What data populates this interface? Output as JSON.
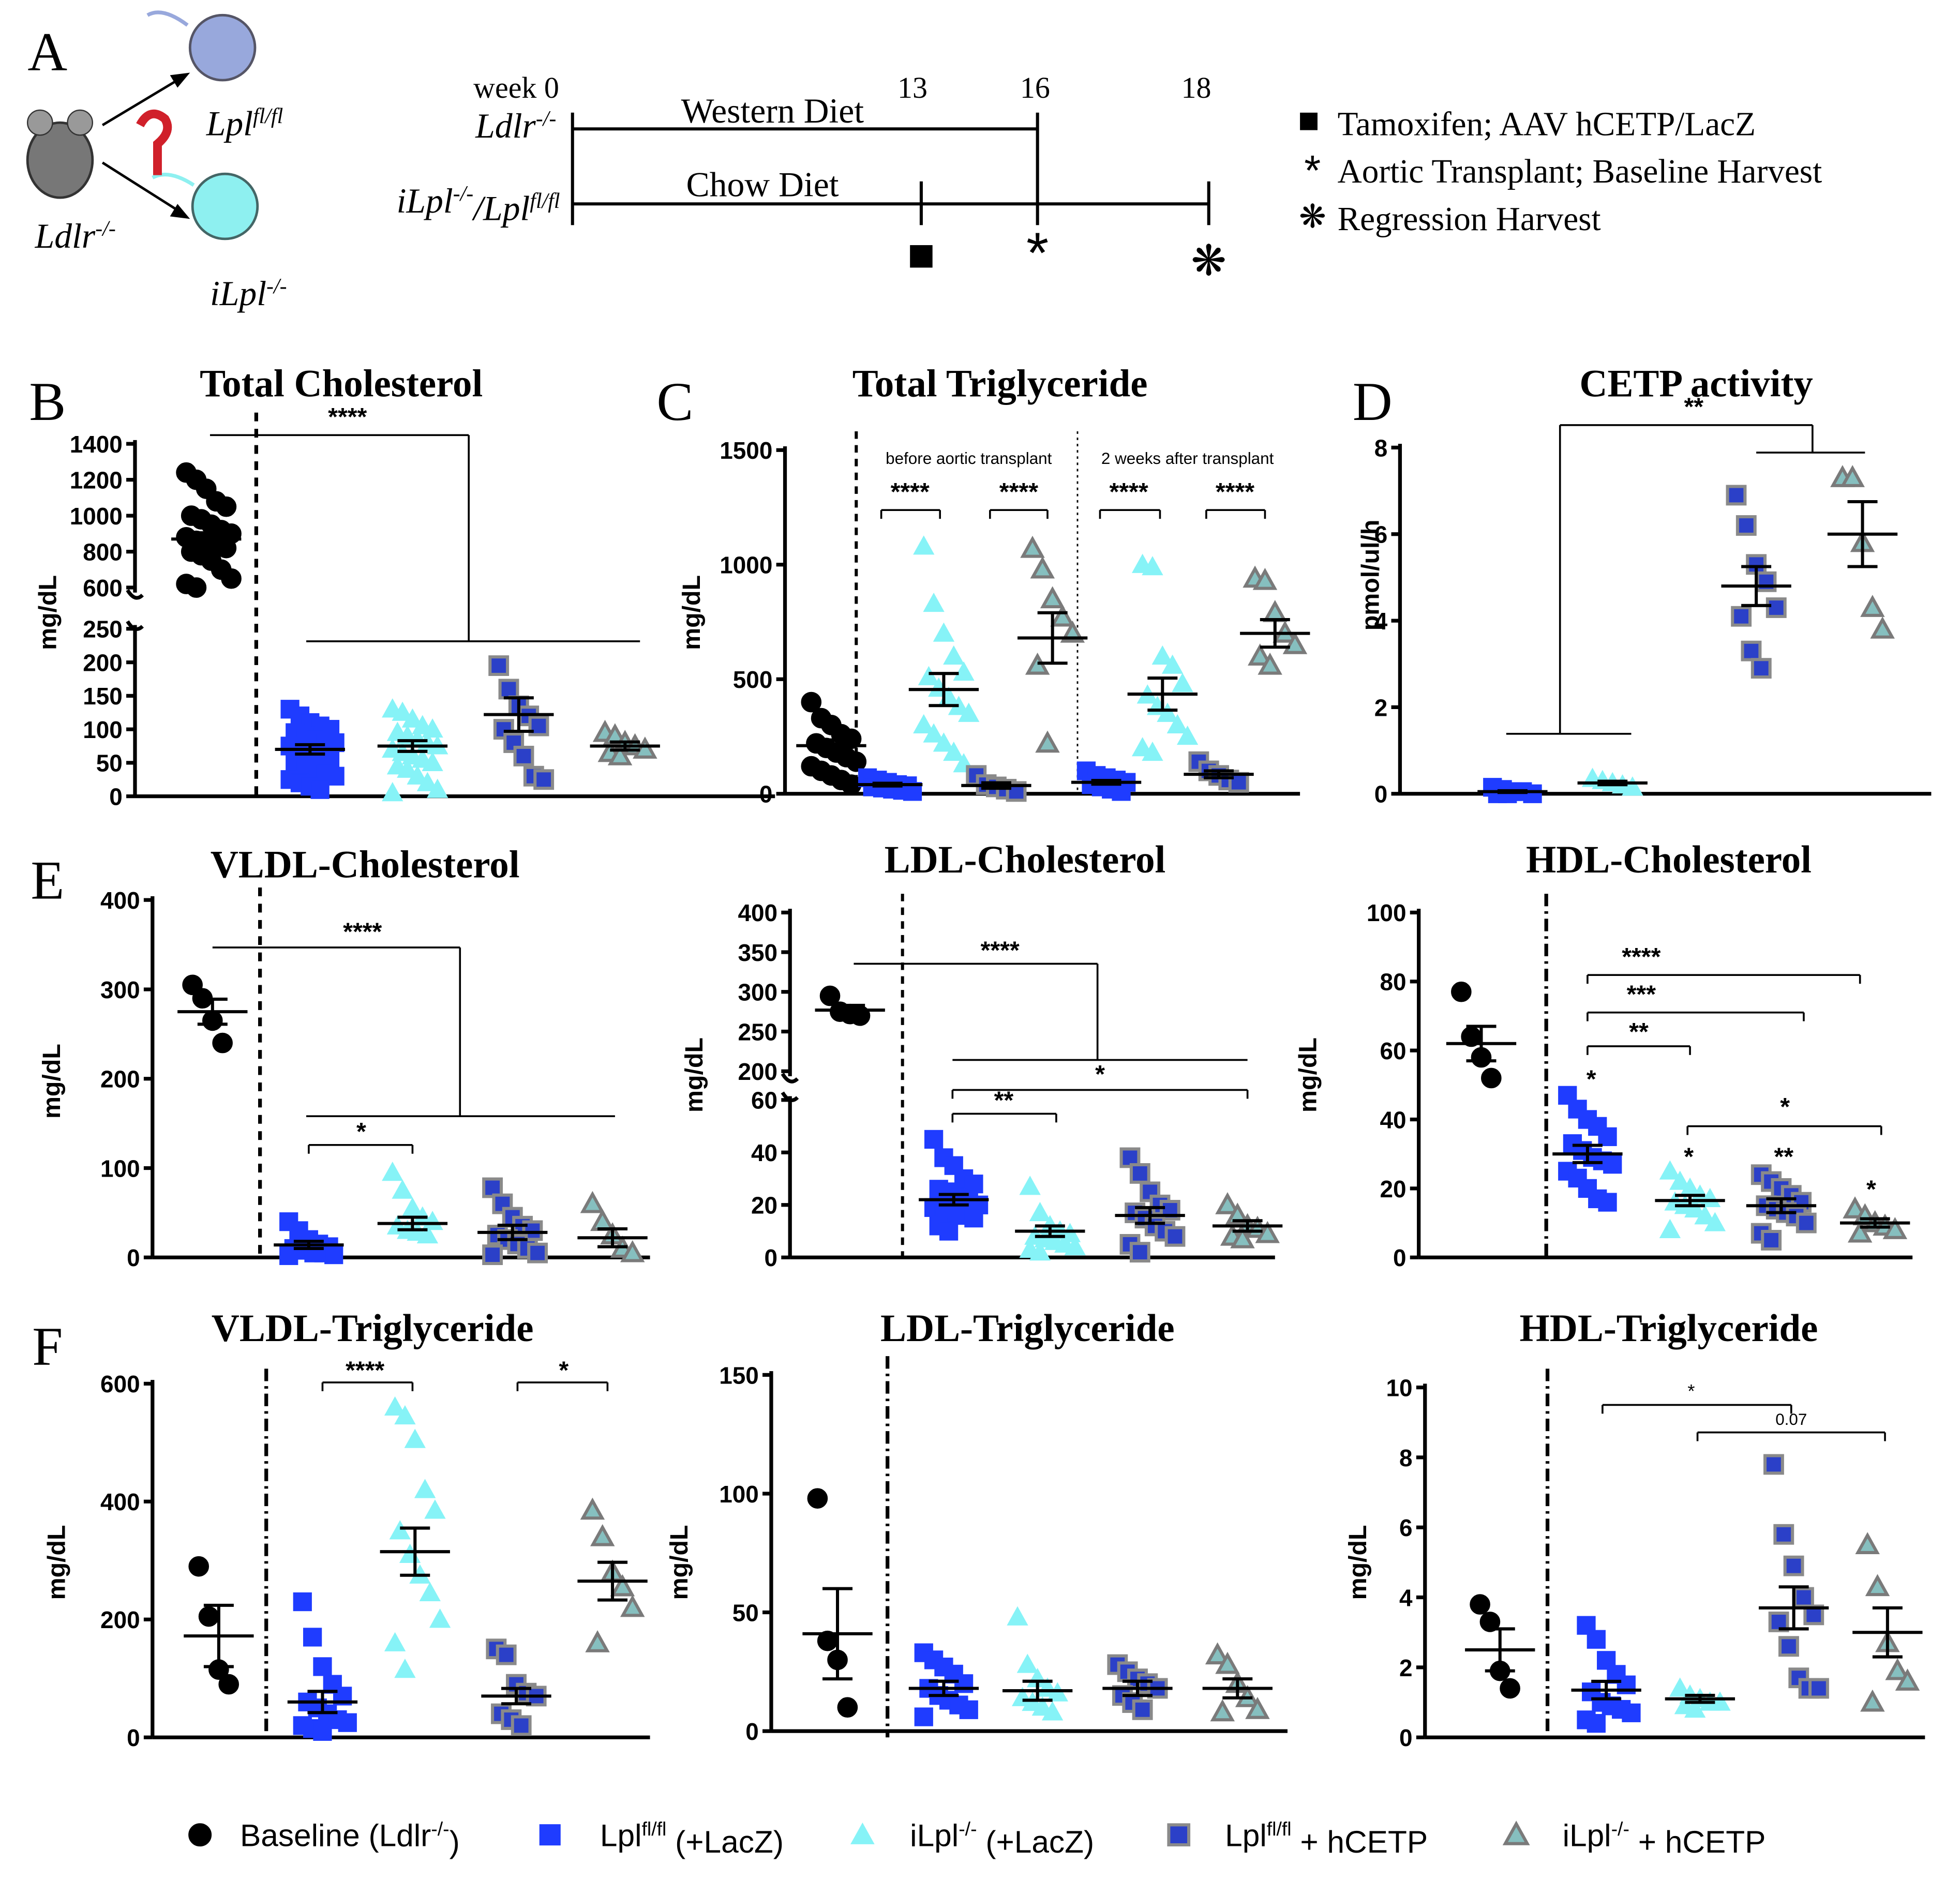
{
  "panel_a": {
    "letter": "A",
    "mice": [
      [
        "Lpl",
        "fl/fl"
      ],
      [
        "Ldlr",
        "-/-"
      ],
      [
        "iLpl",
        "-/-"
      ]
    ],
    "rows": [
      [
        "Ldlr",
        "-/-"
      ],
      [
        "iLpl",
        "-/-",
        "/Lpl",
        "fl/fl"
      ]
    ],
    "weeks": [
      "week 0",
      "13",
      "16",
      "18"
    ],
    "diets": [
      "Western Diet",
      "Chow Diet"
    ],
    "events": [
      "Tamoxifen; AAV hCETP/LacZ",
      "Aortic Transplant; Baseline Harvest",
      "Regression Harvest"
    ]
  },
  "legend": [
    {
      "parts": [
        "Baseline (Ldlr",
        "-/-",
        ")"
      ],
      "color": "#000000",
      "stroke": "#000000",
      "marker": "circle"
    },
    {
      "parts": [
        "Lpl",
        "fl/fl",
        " (+LacZ)"
      ],
      "color": "#1f3cff",
      "stroke": "#1f3cff",
      "marker": "square"
    },
    {
      "parts": [
        "iLpl",
        "-/-",
        " (+LacZ)"
      ],
      "color": "#86f3f7",
      "stroke": "#86f3f7",
      "marker": "triangle"
    },
    {
      "parts": [
        "Lpl",
        "fl/fl",
        " + hCETP"
      ],
      "color": "#2b40c8",
      "stroke": "#8a8a8a",
      "marker": "square"
    },
    {
      "parts": [
        "iLpl",
        "-/-",
        " + hCETP"
      ],
      "color": "#86bfbf",
      "stroke": "#7a7a7a",
      "marker": "triangle"
    }
  ],
  "chart_data": [
    {
      "type": "dot",
      "letter": "B",
      "title": "Total Cholesterol",
      "ylabel": "mg/dL",
      "ylim": [
        0,
        250
      ],
      "yticks": [
        0,
        50,
        100,
        150,
        200,
        250
      ],
      "ylim_upper": [
        600,
        1400
      ],
      "yticks_upper": [
        600,
        800,
        1000,
        1200,
        1400
      ],
      "groups": [
        {
          "values": [
            1240,
            1200,
            1150,
            1080,
            1050,
            1000,
            980,
            950,
            920,
            900,
            880,
            860,
            850,
            840,
            820,
            800,
            780,
            750,
            700,
            650,
            620,
            600
          ],
          "mean": 870,
          "sem": 35
        },
        {
          "values": [
            130,
            120,
            110,
            105,
            100,
            95,
            90,
            85,
            80,
            80,
            75,
            70,
            65,
            60,
            55,
            50,
            45,
            40,
            35,
            30,
            25,
            20,
            15,
            10
          ],
          "mean": 70,
          "sem": 7
        },
        {
          "values": [
            130,
            125,
            115,
            105,
            100,
            95,
            90,
            85,
            80,
            75,
            70,
            65,
            60,
            55,
            50,
            45,
            40,
            30,
            20,
            10,
            5
          ],
          "mean": 75,
          "sem": 8
        },
        {
          "values": [
            195,
            160,
            135,
            120,
            105,
            100,
            80,
            60,
            30,
            25
          ],
          "mean": 122,
          "sem": 25
        },
        {
          "values": [
            95,
            90,
            80,
            75,
            70,
            65,
            60
          ],
          "mean": 75,
          "sem": 6
        }
      ],
      "annotations": [
        "****"
      ]
    },
    {
      "type": "dot",
      "letter": "C",
      "title": "Total Triglyceride",
      "ylabel": "mg/dL",
      "ylim": [
        0,
        1500
      ],
      "yticks": [
        0,
        500,
        1000,
        1500
      ],
      "groups": [
        {
          "values": [
            400,
            330,
            300,
            260,
            240,
            220,
            200,
            180,
            160,
            140,
            120,
            100,
            80,
            60,
            40
          ],
          "mean": 210,
          "sem": 25
        },
        {
          "values": [
            70,
            60,
            50,
            40,
            35,
            30,
            25,
            20,
            15,
            10
          ],
          "mean": 40,
          "sem": 6
        },
        {
          "values": [
            1080,
            830,
            700,
            600,
            530,
            510,
            460,
            420,
            380,
            350,
            300,
            260,
            220,
            180,
            130
          ],
          "mean": 455,
          "sem": 70
        },
        {
          "values": [
            80,
            40,
            30,
            20,
            10
          ],
          "mean": 36,
          "sem": 12
        },
        {
          "values": [
            1070,
            980,
            850,
            770,
            700,
            560,
            220
          ],
          "mean": 680,
          "sem": 110
        },
        {
          "values": [
            100,
            80,
            70,
            60,
            50,
            40,
            30,
            20,
            10
          ],
          "mean": 50,
          "sem": 8
        },
        {
          "values": [
            1000,
            990,
            600,
            560,
            480,
            430,
            380,
            350,
            300,
            250,
            200,
            180
          ],
          "mean": 435,
          "sem": 70
        },
        {
          "values": [
            140,
            100,
            80,
            60,
            50
          ],
          "mean": 85,
          "sem": 15
        },
        {
          "values": [
            940,
            930,
            790,
            700,
            650,
            600,
            560
          ],
          "mean": 700,
          "sem": 60
        }
      ],
      "annotations": [
        "****",
        "****",
        "****",
        "****",
        "before aortic transplant",
        "2 weeks after transplant"
      ]
    },
    {
      "type": "dot",
      "letter": "D",
      "title": "CETP activity",
      "ylabel": "pmol/ul/h",
      "ylim": [
        0,
        8
      ],
      "yticks": [
        0,
        2,
        4,
        6,
        8
      ],
      "groups": [
        {
          "values": [
            0.15,
            0.1,
            0.05,
            0.05,
            0,
            0,
            0
          ],
          "mean": 0.05,
          "sem": 0.02
        },
        {
          "values": [
            0.35,
            0.3,
            0.25,
            0.2,
            0.15
          ],
          "mean": 0.25,
          "sem": 0.04
        },
        {
          "values": [
            6.9,
            6.2,
            5.3,
            4.9,
            4.3,
            4.1,
            3.3,
            2.9
          ],
          "mean": 4.8,
          "sem": 0.45
        },
        {
          "values": [
            7.3,
            7.3,
            5.8,
            4.3,
            3.8
          ],
          "mean": 6.0,
          "sem": 0.75
        }
      ],
      "annotations": [
        "**"
      ]
    },
    {
      "type": "dot",
      "letter": "E",
      "title": "VLDL-Cholesterol",
      "ylabel": "mg/dL",
      "ylim": [
        0,
        400
      ],
      "yticks": [
        0,
        100,
        200,
        300,
        400
      ],
      "groups": [
        {
          "values": [
            305,
            290,
            265,
            240
          ],
          "mean": 275,
          "sem": 14
        },
        {
          "values": [
            40,
            30,
            20,
            15,
            12,
            10,
            8,
            5,
            5,
            3,
            2
          ],
          "mean": 14,
          "sem": 4
        },
        {
          "values": [
            95,
            75,
            55,
            45,
            40,
            35,
            30,
            28,
            25
          ],
          "mean": 38,
          "sem": 7
        },
        {
          "values": [
            78,
            60,
            45,
            35,
            30,
            25,
            20,
            15,
            10,
            5,
            3
          ],
          "mean": 28,
          "sem": 8
        },
        {
          "values": [
            60,
            40,
            25,
            10,
            5
          ],
          "mean": 22,
          "sem": 10
        }
      ],
      "annotations": [
        "****",
        "*"
      ]
    },
    {
      "type": "dot",
      "title": "LDL-Cholesterol",
      "ylabel": "mg/dL",
      "ylim": [
        0,
        60
      ],
      "yticks": [
        0,
        20,
        40,
        60
      ],
      "ylim_upper": [
        200,
        400
      ],
      "yticks_upper": [
        200,
        250,
        300,
        350,
        400
      ],
      "groups": [
        {
          "values": [
            295,
            275,
            272,
            270
          ],
          "mean": 277,
          "sem": 6
        },
        {
          "values": [
            45,
            38,
            35,
            30,
            28,
            26,
            25,
            23,
            22,
            20,
            19,
            18,
            17,
            16,
            15,
            12,
            10
          ],
          "mean": 22,
          "sem": 2
        },
        {
          "values": [
            27,
            17,
            12,
            10,
            9,
            8,
            7,
            6,
            5,
            4,
            3,
            2
          ],
          "mean": 10,
          "sem": 2
        },
        {
          "values": [
            38,
            32,
            25,
            20,
            18,
            17,
            15,
            12,
            10,
            8,
            5,
            2
          ],
          "mean": 16,
          "sem": 3
        },
        {
          "values": [
            20,
            16,
            12,
            11,
            9,
            8,
            7
          ],
          "mean": 12,
          "sem": 2
        }
      ],
      "annotations": [
        "****",
        "*",
        "**"
      ]
    },
    {
      "type": "dot",
      "title": "HDL-Cholesterol",
      "ylabel": "mg/dL",
      "ylim": [
        0,
        100
      ],
      "yticks": [
        0,
        20,
        40,
        60,
        80,
        100
      ],
      "groups": [
        {
          "values": [
            77,
            64,
            58,
            52
          ],
          "mean": 62,
          "sem": 5
        },
        {
          "values": [
            47,
            43,
            40,
            38,
            35,
            33,
            31,
            29,
            28,
            27,
            25,
            23,
            20,
            17,
            16
          ],
          "mean": 30,
          "sem": 2.5
        },
        {
          "values": [
            25,
            22,
            20,
            18,
            17,
            16,
            15,
            14,
            12,
            10,
            8
          ],
          "mean": 16.5,
          "sem": 1.5
        },
        {
          "values": [
            24,
            22,
            20,
            18,
            16,
            15,
            14,
            13,
            12,
            10,
            7,
            5
          ],
          "mean": 15,
          "sem": 2
        },
        {
          "values": [
            14,
            12,
            10,
            9,
            8,
            7
          ],
          "mean": 10,
          "sem": 1.2
        }
      ],
      "annotations": [
        "****",
        "***",
        "**",
        "*",
        "*",
        "*",
        "**",
        "*"
      ]
    },
    {
      "type": "dot",
      "letter": "F",
      "title": "VLDL-Triglyceride",
      "ylabel": "mg/dL",
      "ylim": [
        0,
        600
      ],
      "yticks": [
        0,
        200,
        400,
        600
      ],
      "groups": [
        {
          "values": [
            290,
            205,
            115,
            90
          ],
          "mean": 172,
          "sem": 52
        },
        {
          "values": [
            230,
            170,
            120,
            90,
            70,
            60,
            50,
            40,
            30,
            25,
            20,
            15,
            10
          ],
          "mean": 60,
          "sem": 18
        },
        {
          "values": [
            560,
            545,
            505,
            420,
            385,
            350,
            310,
            275,
            245,
            200,
            160,
            115
          ],
          "mean": 315,
          "sem": 40
        },
        {
          "values": [
            150,
            140,
            90,
            75,
            70,
            40,
            30,
            20
          ],
          "mean": 70,
          "sem": 13
        },
        {
          "values": [
            385,
            340,
            280,
            255,
            220,
            160
          ],
          "mean": 265,
          "sem": 32
        }
      ],
      "annotations": [
        "****",
        "*"
      ]
    },
    {
      "type": "dot",
      "title": "LDL-Triglyceride",
      "ylabel": "mg/dL",
      "ylim": [
        0,
        150
      ],
      "yticks": [
        0,
        50,
        100,
        150
      ],
      "groups": [
        {
          "values": [
            98,
            38,
            30,
            10
          ],
          "mean": 41,
          "sem": 19
        },
        {
          "values": [
            33,
            30,
            27,
            24,
            20,
            18,
            15,
            13,
            11,
            9,
            6
          ],
          "mean": 18,
          "sem": 3
        },
        {
          "values": [
            48,
            28,
            22,
            18,
            16,
            14,
            12,
            10,
            8
          ],
          "mean": 17,
          "sem": 4
        },
        {
          "values": [
            28,
            25,
            22,
            20,
            18,
            15,
            12,
            9
          ],
          "mean": 18,
          "sem": 3
        },
        {
          "values": [
            32,
            28,
            20,
            14,
            9,
            8
          ],
          "mean": 18,
          "sem": 4
        }
      ],
      "annotations": []
    },
    {
      "type": "dot",
      "title": "HDL-Triglyceride",
      "ylabel": "mg/dL",
      "ylim": [
        0,
        10
      ],
      "yticks": [
        0,
        2,
        4,
        6,
        8,
        10
      ],
      "groups": [
        {
          "values": [
            3.8,
            3.3,
            1.9,
            1.4
          ],
          "mean": 2.5,
          "sem": 0.6
        },
        {
          "values": [
            3.2,
            2.8,
            2.2,
            1.8,
            1.5,
            1.3,
            1.0,
            0.9,
            0.8,
            0.7,
            0.5,
            0.4
          ],
          "mean": 1.35,
          "sem": 0.25
        },
        {
          "values": [
            1.4,
            1.2,
            1.1,
            1.0,
            1.0,
            0.9,
            0.8
          ],
          "mean": 1.1,
          "sem": 0.1
        },
        {
          "values": [
            7.8,
            5.8,
            4.9,
            4.0,
            3.5,
            3.3,
            2.6,
            1.7,
            1.4,
            1.4
          ],
          "mean": 3.7,
          "sem": 0.6
        },
        {
          "values": [
            5.5,
            4.3,
            2.7,
            1.9,
            1.6,
            1.0
          ],
          "mean": 3.0,
          "sem": 0.7
        }
      ],
      "annotations": [
        "*",
        "0.07"
      ]
    }
  ]
}
